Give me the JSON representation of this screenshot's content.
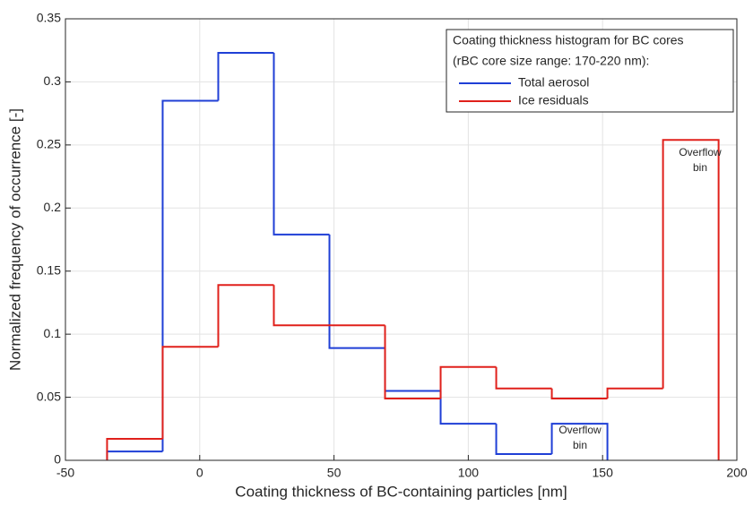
{
  "chart_data": {
    "type": "histogram",
    "xlabel": "Coating thickness of BC-containing particles [nm]",
    "ylabel": "Normalized frequency of occurrence [-]",
    "xlim": [
      -50,
      200
    ],
    "xticks": [
      -50,
      0,
      50,
      100,
      150,
      200
    ],
    "ylim": [
      0,
      0.35
    ],
    "yticks": [
      0,
      0.05,
      0.1,
      0.15,
      0.2,
      0.25,
      0.3,
      0.35
    ],
    "grid": true,
    "legend_title": [
      "Coating thickness histogram for BC cores",
      "(rBC core size range: 170-220 nm):"
    ],
    "legend_position": "upper right",
    "series": [
      {
        "name": "Total aerosol",
        "color": "#1f3fd6",
        "bins": [
          -34.5,
          -13.8,
          6.9,
          27.6,
          48.3,
          69.0,
          89.7,
          110.4,
          131.1,
          151.8
        ],
        "values": [
          0.007,
          0.285,
          0.323,
          0.179,
          0.089,
          0.055,
          0.029,
          0.005,
          0.029
        ]
      },
      {
        "name": "Ice residuals",
        "color": "#e0201b",
        "bins": [
          -34.5,
          -13.8,
          6.9,
          27.6,
          48.3,
          69.0,
          89.7,
          110.4,
          131.1,
          151.8,
          172.5,
          193.2
        ],
        "values": [
          0.017,
          0.09,
          0.139,
          0.107,
          0.107,
          0.049,
          0.074,
          0.057,
          0.049,
          0.057,
          0.254
        ]
      }
    ],
    "annotations": [
      [
        "Overflow",
        "bin"
      ],
      [
        "Overflow",
        "bin"
      ]
    ]
  }
}
